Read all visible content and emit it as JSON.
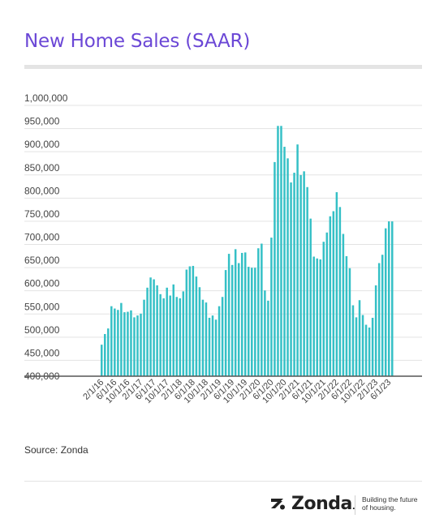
{
  "title": "New Home Sales (SAAR)",
  "source": "Source: Zonda",
  "brand": {
    "name": "Zonda",
    "trademark": ".",
    "tagline_line1": "Building the future",
    "tagline_line2": "of housing."
  },
  "colors": {
    "bar": "#35c0c6",
    "title": "#6b47d6",
    "axis": "#444444",
    "grid": "#e3e3e3"
  },
  "chart_data": {
    "type": "bar",
    "title": "New Home Sales (SAAR)",
    "xlabel": "",
    "ylabel": "",
    "ylim": [
      400000,
      1000000
    ],
    "yticks": [
      "1,000,000",
      "950,000",
      "900,000",
      "850,000",
      "800,000",
      "750,000",
      "700,000",
      "650,000",
      "600,000",
      "550,000",
      "500,000",
      "450,000",
      "400,000"
    ],
    "ytick_values": [
      1000000,
      950000,
      900000,
      850000,
      800000,
      750000,
      700000,
      650000,
      600000,
      550000,
      500000,
      450000,
      400000
    ],
    "grid": true,
    "x_tick_labels": [
      "2/1/16",
      "6/1/16",
      "10/1/16",
      "2/1/17",
      "6/1/17",
      "10/1/17",
      "2/1/18",
      "6/1/18",
      "10/1/18",
      "2/1/19",
      "6/1/19",
      "10/1/19",
      "2/1/20",
      "6/1/20",
      "10/1/20",
      "2/1/21",
      "6/1/21",
      "10/1/21",
      "2/1/22",
      "6/1/22",
      "10/1/22",
      "2/1/23",
      "6/1/23"
    ],
    "categories": [
      "2/1/16",
      "3/1/16",
      "4/1/16",
      "5/1/16",
      "6/1/16",
      "7/1/16",
      "8/1/16",
      "9/1/16",
      "10/1/16",
      "11/1/16",
      "12/1/16",
      "1/1/17",
      "2/1/17",
      "3/1/17",
      "4/1/17",
      "5/1/17",
      "6/1/17",
      "7/1/17",
      "8/1/17",
      "9/1/17",
      "10/1/17",
      "11/1/17",
      "12/1/17",
      "1/1/18",
      "2/1/18",
      "3/1/18",
      "4/1/18",
      "5/1/18",
      "6/1/18",
      "7/1/18",
      "8/1/18",
      "9/1/18",
      "10/1/18",
      "11/1/18",
      "12/1/18",
      "1/1/19",
      "2/1/19",
      "3/1/19",
      "4/1/19",
      "5/1/19",
      "6/1/19",
      "7/1/19",
      "8/1/19",
      "9/1/19",
      "10/1/19",
      "11/1/19",
      "12/1/19",
      "1/1/20",
      "2/1/20",
      "3/1/20",
      "4/1/20",
      "5/1/20",
      "6/1/20",
      "7/1/20",
      "8/1/20",
      "9/1/20",
      "10/1/20",
      "11/1/20",
      "12/1/20",
      "1/1/21",
      "2/1/21",
      "3/1/21",
      "4/1/21",
      "5/1/21",
      "6/1/21",
      "7/1/21",
      "8/1/21",
      "9/1/21",
      "10/1/21",
      "11/1/21",
      "12/1/21",
      "1/1/22",
      "2/1/22",
      "3/1/22",
      "4/1/22",
      "5/1/22",
      "6/1/22",
      "7/1/22",
      "8/1/22",
      "9/1/22",
      "10/1/22",
      "11/1/22",
      "12/1/22",
      "1/1/23",
      "2/1/23",
      "3/1/23",
      "4/1/23",
      "5/1/23",
      "6/1/23",
      "7/1/23"
    ],
    "values": [
      468000,
      491000,
      503000,
      551000,
      546000,
      543000,
      558000,
      538000,
      539000,
      542000,
      527000,
      531000,
      535000,
      565000,
      591000,
      613000,
      609000,
      596000,
      577000,
      568000,
      591000,
      574000,
      598000,
      571000,
      568000,
      583000,
      630000,
      637000,
      638000,
      615000,
      592000,
      565000,
      559000,
      526000,
      531000,
      522000,
      551000,
      571000,
      629000,
      664000,
      640000,
      674000,
      644000,
      666000,
      667000,
      636000,
      634000,
      634000,
      676000,
      686000,
      585000,
      563000,
      699000,
      862000,
      940000,
      940000,
      895000,
      870000,
      818000,
      839000,
      900000,
      834000,
      842000,
      808000,
      740000,
      658000,
      654000,
      652000,
      690000,
      710000,
      745000,
      756000,
      797000,
      765000,
      707000,
      659000,
      633000,
      553000,
      527000,
      564000,
      532000,
      511000,
      505000,
      526000,
      596000,
      644000,
      662000,
      719000,
      734000,
      734000
    ]
  }
}
